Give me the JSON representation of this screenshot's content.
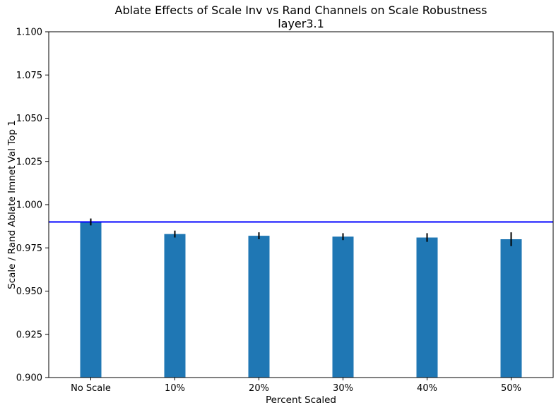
{
  "chart_data": {
    "type": "bar",
    "title": "Ablate Effects of Scale Inv vs Rand Channels on Scale Robustness",
    "subtitle": "layer3.1",
    "xlabel": "Percent Scaled",
    "ylabel": "Scale / Rand Ablate Imnet Val Top 1",
    "categories": [
      "No Scale",
      "10%",
      "20%",
      "30%",
      "40%",
      "50%"
    ],
    "values": [
      0.99,
      0.983,
      0.982,
      0.9815,
      0.981,
      0.98
    ],
    "error_bars": [
      0.002,
      0.002,
      0.002,
      0.002,
      0.0025,
      0.004
    ],
    "reference_line": {
      "y": 0.99,
      "color": "#0000ff"
    },
    "ylim": [
      0.9,
      1.1
    ],
    "ytick_step": 0.025,
    "ytick_decimals": 3,
    "bar_color": "#1f77b4",
    "error_color": "#000000",
    "axis_color": "#000000",
    "grid": false,
    "legend": null
  }
}
